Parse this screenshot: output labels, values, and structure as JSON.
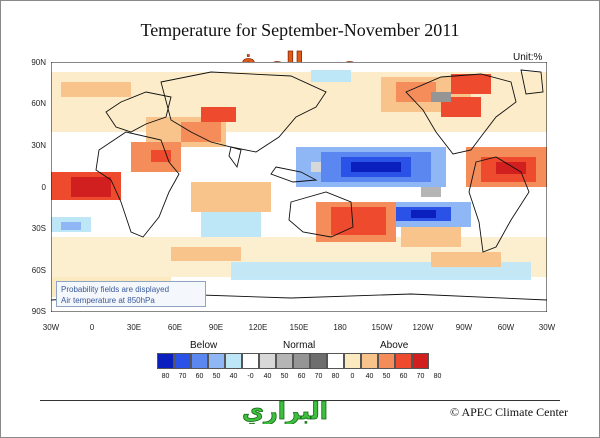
{
  "title": "Temperature for September-November 2011",
  "unit": "Unit:%",
  "watermark_top": "مهب الهيف",
  "watermark_bottom": "البراري",
  "credit": "© APEC Climate Center",
  "map": {
    "lat_labels": [
      "90N",
      "60N",
      "30N",
      "0",
      "30S",
      "60S",
      "90S"
    ],
    "lon_labels": [
      "30W",
      "0",
      "30E",
      "60E",
      "90E",
      "120E",
      "150E",
      "180",
      "150W",
      "120W",
      "90W",
      "60W",
      "30W"
    ],
    "note_line1": "Probability fields are displayed",
    "note_line2": "Air temperature at 850hPa"
  },
  "legend": {
    "below_label": "Below",
    "normal_label": "Normal",
    "above_label": "Above",
    "colors": [
      "#0b1fbf",
      "#2a52e6",
      "#5a87f0",
      "#8fb7f6",
      "#bde6f7",
      "#ffffff",
      "#d8d8d8",
      "#b5b5b5",
      "#959595",
      "#6e6e6e",
      "#ffffff",
      "#fbe9c0",
      "#f8c48c",
      "#f48d5a",
      "#ee4a2d",
      "#d11e1e"
    ],
    "labels": [
      "80",
      "70",
      "60",
      "50",
      "40",
      "-0",
      "40",
      "50",
      "60",
      "70",
      "80",
      "0",
      "40",
      "50",
      "60",
      "70",
      "80"
    ]
  }
}
